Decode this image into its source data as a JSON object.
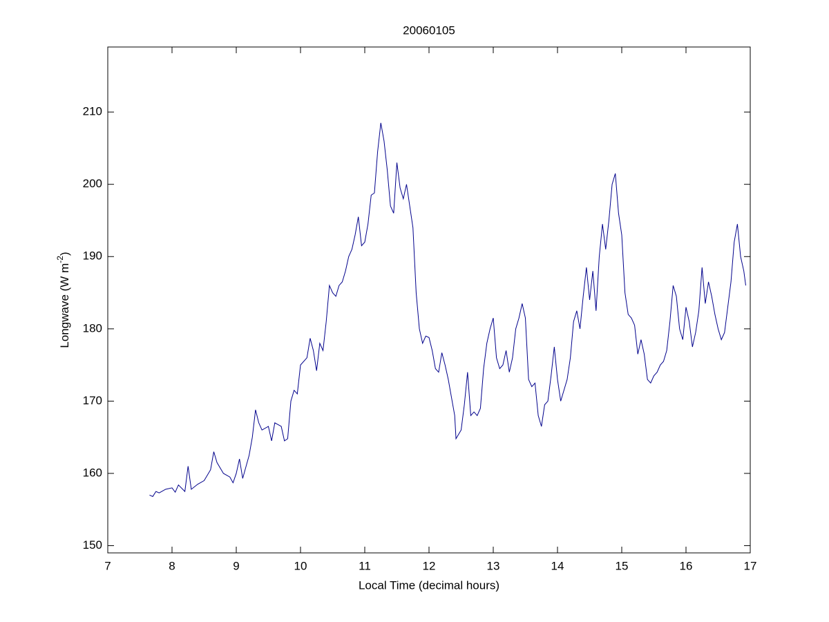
{
  "chart_data": {
    "type": "line",
    "title": "20060105",
    "xlabel": "Local Time (decimal hours)",
    "ylabel": {
      "text": "Longwave (W m",
      "superscript": "-2",
      "suffix": ")"
    },
    "xlim": [
      7,
      17
    ],
    "xticks": [
      7,
      8,
      9,
      10,
      11,
      12,
      13,
      14,
      15,
      16,
      17
    ],
    "ylim": [
      149,
      219
    ],
    "yticks": [
      150,
      160,
      170,
      180,
      190,
      200,
      210
    ],
    "grid": false,
    "series": [
      {
        "color": "#00008b",
        "x": [
          7.65,
          7.7,
          7.75,
          7.8,
          7.9,
          8.0,
          8.05,
          8.1,
          8.2,
          8.25,
          8.3,
          8.4,
          8.5,
          8.6,
          8.65,
          8.7,
          8.8,
          8.9,
          8.95,
          9.0,
          9.05,
          9.1,
          9.2,
          9.25,
          9.3,
          9.35,
          9.4,
          9.5,
          9.55,
          9.6,
          9.7,
          9.75,
          9.8,
          9.85,
          9.9,
          9.95,
          10.0,
          10.1,
          10.15,
          10.2,
          10.25,
          10.3,
          10.35,
          10.4,
          10.45,
          10.5,
          10.55,
          10.6,
          10.65,
          10.7,
          10.75,
          10.8,
          10.85,
          10.9,
          10.95,
          11.0,
          11.05,
          11.1,
          11.15,
          11.2,
          11.25,
          11.3,
          11.35,
          11.4,
          11.45,
          11.5,
          11.55,
          11.6,
          11.65,
          11.7,
          11.75,
          11.8,
          11.85,
          11.9,
          11.95,
          12.0,
          12.05,
          12.1,
          12.15,
          12.2,
          12.25,
          12.3,
          12.35,
          12.4,
          12.42,
          12.5,
          12.55,
          12.6,
          12.65,
          12.7,
          12.75,
          12.8,
          12.85,
          12.9,
          12.95,
          13.0,
          13.05,
          13.1,
          13.15,
          13.2,
          13.25,
          13.3,
          13.35,
          13.4,
          13.45,
          13.5,
          13.55,
          13.6,
          13.65,
          13.7,
          13.75,
          13.8,
          13.85,
          13.9,
          13.95,
          14.0,
          14.05,
          14.1,
          14.15,
          14.2,
          14.25,
          14.3,
          14.35,
          14.4,
          14.45,
          14.5,
          14.55,
          14.6,
          14.65,
          14.7,
          14.75,
          14.8,
          14.85,
          14.9,
          14.95,
          15.0,
          15.05,
          15.1,
          15.15,
          15.2,
          15.25,
          15.3,
          15.35,
          15.4,
          15.45,
          15.5,
          15.55,
          15.6,
          15.65,
          15.7,
          15.75,
          15.8,
          15.85,
          15.9,
          15.95,
          16.0,
          16.05,
          16.1,
          16.15,
          16.2,
          16.25,
          16.3,
          16.35,
          16.4,
          16.45,
          16.5,
          16.55,
          16.6,
          16.65,
          16.7,
          16.75,
          16.8,
          16.85,
          16.9,
          16.93
        ],
        "values": [
          157,
          156.8,
          157.5,
          157.3,
          157.8,
          158,
          157.4,
          158.4,
          157.5,
          161,
          157.8,
          158.5,
          159,
          160.5,
          163,
          161.5,
          160,
          159.5,
          158.7,
          160,
          162,
          159.3,
          162.5,
          165,
          168.8,
          167,
          166,
          166.5,
          164.5,
          167,
          166.5,
          164.5,
          164.8,
          170,
          171.5,
          171,
          175,
          176,
          178.7,
          177,
          174.2,
          178,
          177,
          181,
          186,
          185,
          184.5,
          186,
          186.5,
          188,
          190,
          191,
          193,
          195.5,
          191.5,
          192,
          194.5,
          198.5,
          198.8,
          204.5,
          208.5,
          206,
          202,
          197,
          196,
          203,
          199.5,
          198,
          200,
          197,
          194,
          185,
          180,
          178,
          179,
          178.8,
          177,
          174.5,
          174,
          176.7,
          175,
          173,
          170.5,
          168,
          164.8,
          166,
          169.5,
          174,
          168,
          168.5,
          168,
          169,
          174.5,
          178,
          180,
          181.5,
          176,
          174.5,
          175,
          177,
          174,
          176,
          180,
          181.5,
          183.5,
          181.5,
          173,
          172,
          172.5,
          168,
          166.5,
          169.5,
          170,
          173.5,
          177.5,
          173,
          170,
          171.5,
          173,
          176,
          181,
          182.5,
          180,
          184.5,
          188.5,
          184,
          188,
          182.5,
          190,
          194.5,
          191,
          195,
          200,
          201.5,
          196,
          193,
          185,
          182,
          181.5,
          180.5,
          176.5,
          178.5,
          176.5,
          173,
          172.5,
          173.5,
          174,
          175,
          175.5,
          177,
          181,
          186,
          184.5,
          180,
          178.5,
          183,
          181,
          177.5,
          179.5,
          182.5,
          188.5,
          183.5,
          186.5,
          184.5,
          182,
          180,
          178.5,
          179.5,
          183,
          186.5,
          192,
          194.5,
          190,
          188,
          186
        ]
      }
    ]
  }
}
